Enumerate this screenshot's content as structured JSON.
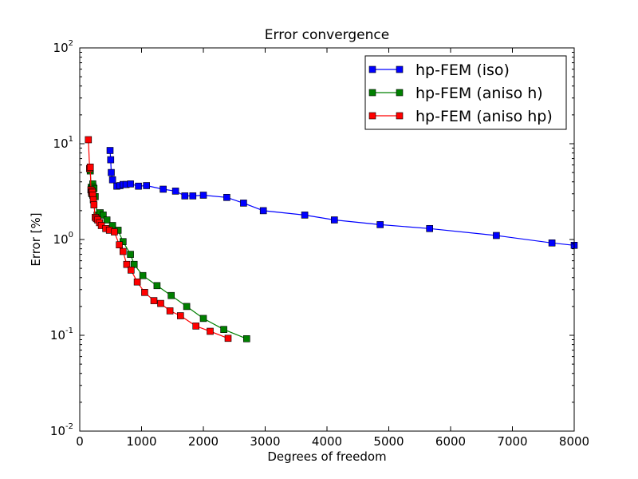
{
  "chart_data": {
    "type": "line",
    "title": "Error convergence",
    "xlabel": "Degrees of freedom",
    "ylabel": "Error [%]",
    "xlim": [
      0,
      8000
    ],
    "ylim": [
      0.01,
      100
    ],
    "yscale": "log",
    "grid": false,
    "legend_position": "top-right",
    "x_ticks": [
      0,
      1000,
      2000,
      3000,
      4000,
      5000,
      6000,
      7000,
      8000
    ],
    "x_tick_labels": [
      "0",
      "1000",
      "2000",
      "3000",
      "4000",
      "5000",
      "6000",
      "7000",
      "8000"
    ],
    "y_ticks": [
      {
        "value": 0.01,
        "base": "10",
        "exp": "-2"
      },
      {
        "value": 0.1,
        "base": "10",
        "exp": "-1"
      },
      {
        "value": 1,
        "base": "10",
        "exp": "0"
      },
      {
        "value": 10,
        "base": "10",
        "exp": "1"
      },
      {
        "value": 100,
        "base": "10",
        "exp": "2"
      }
    ],
    "series": [
      {
        "name": "hp-FEM (iso)",
        "color": "#0000ff",
        "x": [
          490,
          500,
          510,
          530,
          600,
          650,
          700,
          750,
          820,
          950,
          1080,
          1350,
          1550,
          1700,
          1830,
          2000,
          2380,
          2650,
          2970,
          3640,
          4120,
          4860,
          5660,
          6740,
          7640,
          8000
        ],
        "y": [
          8.5,
          6.8,
          5.0,
          4.2,
          3.6,
          3.65,
          3.75,
          3.75,
          3.8,
          3.6,
          3.65,
          3.35,
          3.2,
          2.85,
          2.85,
          2.9,
          2.75,
          2.4,
          2.0,
          1.8,
          1.6,
          1.43,
          1.3,
          1.1,
          0.92,
          0.87
        ]
      },
      {
        "name": "hp-FEM (aniso h)",
        "color": "#008000",
        "x": [
          160,
          170,
          185,
          195,
          210,
          220,
          230,
          250,
          280,
          330,
          380,
          440,
          530,
          620,
          700,
          820,
          880,
          1020,
          1250,
          1480,
          1730,
          2000,
          2330,
          2700
        ],
        "y": [
          5.5,
          5.2,
          3.5,
          3.0,
          3.8,
          3.5,
          3.4,
          2.8,
          1.8,
          1.9,
          1.8,
          1.6,
          1.4,
          1.25,
          0.95,
          0.7,
          0.55,
          0.42,
          0.33,
          0.26,
          0.2,
          0.15,
          0.115,
          0.092
        ]
      },
      {
        "name": "hp-FEM (aniso hp)",
        "color": "#ff0000",
        "x": [
          140,
          160,
          170,
          180,
          190,
          200,
          205,
          210,
          220,
          230,
          250,
          270,
          290,
          320,
          350,
          420,
          480,
          560,
          640,
          700,
          760,
          830,
          930,
          1050,
          1200,
          1310,
          1460,
          1630,
          1880,
          2110,
          2400
        ],
        "y": [
          11.0,
          5.5,
          5.7,
          3.3,
          3.1,
          3.2,
          3.1,
          2.9,
          2.6,
          2.3,
          1.7,
          1.65,
          1.6,
          1.5,
          1.4,
          1.3,
          1.25,
          1.2,
          0.88,
          0.75,
          0.55,
          0.48,
          0.36,
          0.28,
          0.23,
          0.215,
          0.18,
          0.16,
          0.125,
          0.11,
          0.093
        ]
      }
    ]
  }
}
